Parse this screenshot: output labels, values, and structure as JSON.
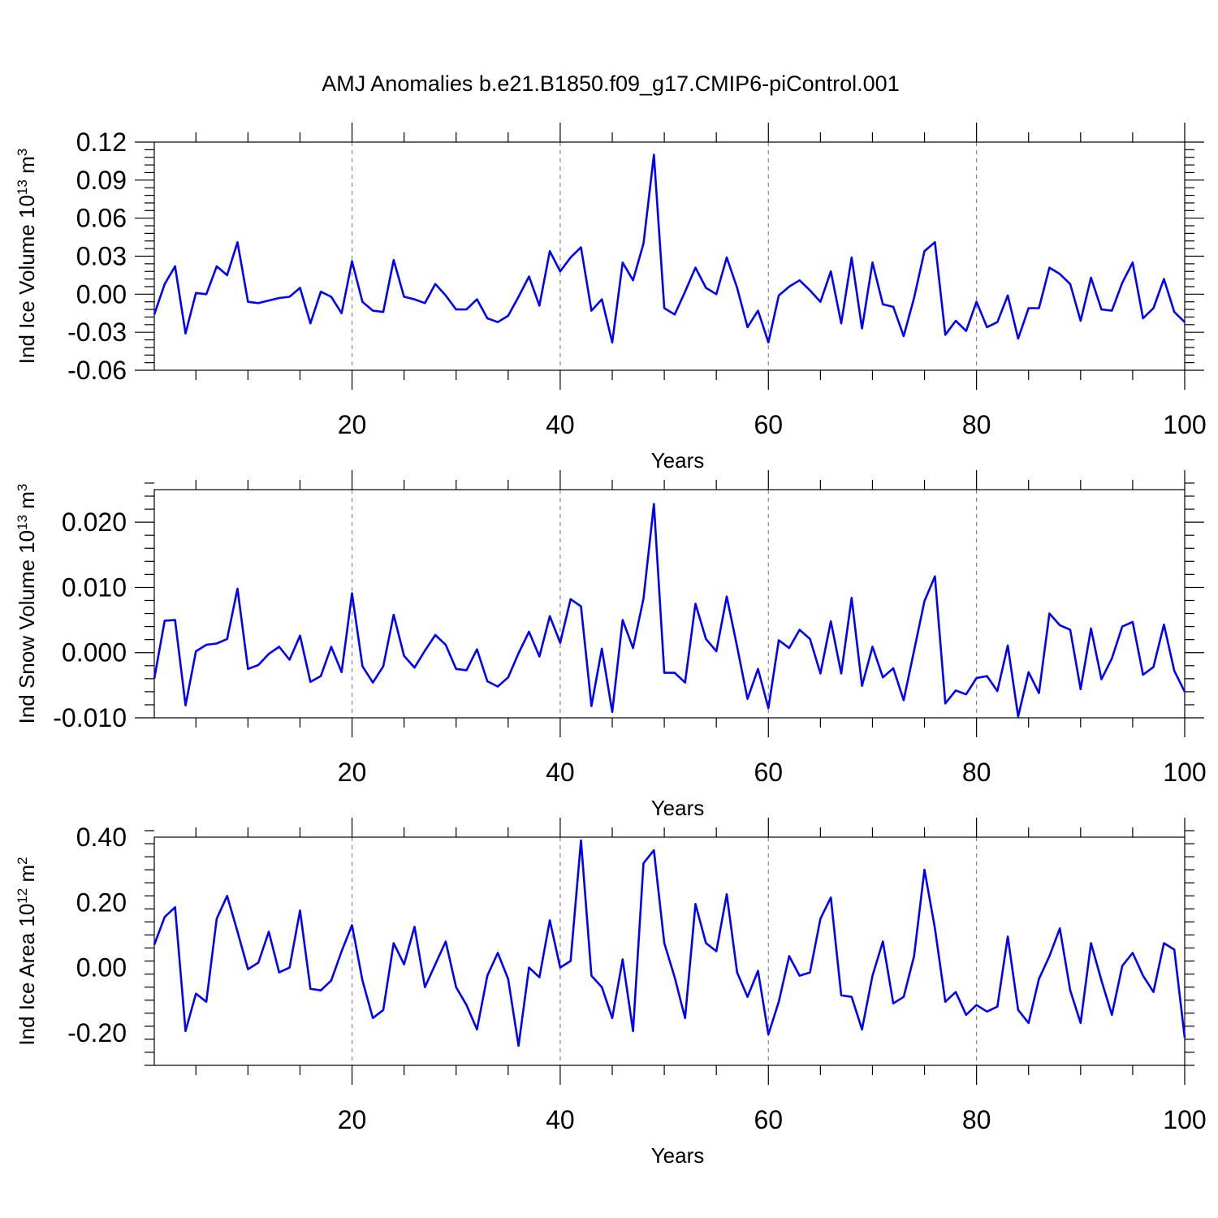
{
  "title": "AMJ Anomalies b.e21.B1850.f09_g17.CMIP6-piControl.001",
  "colors": {
    "series": "#0000ff",
    "axis": "#000000",
    "grid": "#888888"
  },
  "chart_data": [
    {
      "type": "line",
      "ylabel_main": "Ind Ice Volume 10",
      "ylabel_sup": "13",
      "ylabel_unit": " m",
      "ylabel_unit_sup": "3",
      "xlabel": "Years",
      "xlim": [
        1,
        100
      ],
      "ylim": [
        -0.06,
        0.12
      ],
      "xticks": [
        20,
        40,
        60,
        80,
        100
      ],
      "yticks": [
        -0.06,
        -0.03,
        0.0,
        0.03,
        0.06,
        0.09,
        0.12
      ],
      "ytick_labels": [
        "-0.06",
        "-0.03",
        "0.00",
        "0.03",
        "0.06",
        "0.09",
        "0.12"
      ],
      "ytick_decimals": 2,
      "grid_x": true,
      "x": [
        1,
        2,
        3,
        4,
        5,
        6,
        7,
        8,
        9,
        10,
        11,
        12,
        13,
        14,
        15,
        16,
        17,
        18,
        19,
        20,
        21,
        22,
        23,
        24,
        25,
        26,
        27,
        28,
        29,
        30,
        31,
        32,
        33,
        34,
        35,
        36,
        37,
        38,
        39,
        40,
        41,
        42,
        43,
        44,
        45,
        46,
        47,
        48,
        49,
        50,
        51,
        52,
        53,
        54,
        55,
        56,
        57,
        58,
        59,
        60,
        61,
        62,
        63,
        64,
        65,
        66,
        67,
        68,
        69,
        70,
        71,
        72,
        73,
        74,
        75,
        76,
        77,
        78,
        79,
        80,
        81,
        82,
        83,
        84,
        85,
        86,
        87,
        88,
        89,
        90,
        91,
        92,
        93,
        94,
        95,
        96,
        97,
        98,
        99,
        100
      ],
      "series": [
        {
          "values": [
            -0.016,
            0.008,
            0.022,
            -0.031,
            0.001,
            0.0,
            0.022,
            0.015,
            0.041,
            -0.006,
            -0.007,
            -0.005,
            -0.003,
            -0.002,
            0.005,
            -0.023,
            0.002,
            -0.002,
            -0.015,
            0.026,
            -0.006,
            -0.013,
            -0.014,
            0.027,
            -0.002,
            -0.004,
            -0.007,
            0.008,
            -0.001,
            -0.012,
            -0.012,
            -0.004,
            -0.019,
            -0.022,
            -0.017,
            -0.002,
            0.014,
            -0.009,
            0.034,
            0.018,
            0.029,
            0.037,
            -0.013,
            -0.004,
            -0.038,
            0.025,
            0.011,
            0.04,
            0.11,
            -0.011,
            -0.016,
            0.002,
            0.021,
            0.005,
            0.0,
            0.029,
            0.005,
            -0.026,
            -0.013,
            -0.038,
            -0.001,
            0.006,
            0.011,
            0.003,
            -0.006,
            0.018,
            -0.023,
            0.029,
            -0.027,
            0.025,
            -0.008,
            -0.01,
            -0.033,
            -0.003,
            0.034,
            0.041,
            -0.032,
            -0.021,
            -0.029,
            -0.006,
            -0.026,
            -0.022,
            -0.001,
            -0.035,
            -0.011,
            -0.011,
            0.021,
            0.016,
            0.008,
            -0.021,
            0.013,
            -0.012,
            -0.013,
            0.009,
            0.025,
            -0.019,
            -0.011,
            0.012,
            -0.014,
            -0.022
          ]
        }
      ]
    },
    {
      "type": "line",
      "ylabel_main": "Ind Snow Volume 10",
      "ylabel_sup": "13",
      "ylabel_unit": " m",
      "ylabel_unit_sup": "3",
      "xlabel": "Years",
      "xlim": [
        1,
        100
      ],
      "ylim": [
        -0.01,
        0.025
      ],
      "xticks": [
        20,
        40,
        60,
        80,
        100
      ],
      "yticks": [
        -0.01,
        0.0,
        0.01,
        0.02
      ],
      "ytick_labels": [
        "-0.010",
        "0.000",
        "0.010",
        "0.020"
      ],
      "ytick_decimals": 3,
      "grid_x": true,
      "x": [
        1,
        2,
        3,
        4,
        5,
        6,
        7,
        8,
        9,
        10,
        11,
        12,
        13,
        14,
        15,
        16,
        17,
        18,
        19,
        20,
        21,
        22,
        23,
        24,
        25,
        26,
        27,
        28,
        29,
        30,
        31,
        32,
        33,
        34,
        35,
        36,
        37,
        38,
        39,
        40,
        41,
        42,
        43,
        44,
        45,
        46,
        47,
        48,
        49,
        50,
        51,
        52,
        53,
        54,
        55,
        56,
        57,
        58,
        59,
        60,
        61,
        62,
        63,
        64,
        65,
        66,
        67,
        68,
        69,
        70,
        71,
        72,
        73,
        74,
        75,
        76,
        77,
        78,
        79,
        80,
        81,
        82,
        83,
        84,
        85,
        86,
        87,
        88,
        89,
        90,
        91,
        92,
        93,
        94,
        95,
        96,
        97,
        98,
        99,
        100
      ],
      "series": [
        {
          "values": [
            -0.004,
            0.0049,
            0.005,
            -0.0081,
            0.0002,
            0.0012,
            0.0014,
            0.0021,
            0.0098,
            -0.0025,
            -0.0019,
            -0.0002,
            0.0009,
            -0.0011,
            0.0026,
            -0.0045,
            -0.0036,
            0.0009,
            -0.003,
            0.0091,
            -0.0021,
            -0.0046,
            -0.0021,
            0.0058,
            -0.0005,
            -0.0023,
            0.0003,
            0.0027,
            0.0012,
            -0.0025,
            -0.0027,
            0.0005,
            -0.0044,
            -0.0052,
            -0.0038,
            -0.0001,
            0.0032,
            -0.0006,
            0.0056,
            0.0015,
            0.0082,
            0.0071,
            -0.0082,
            0.0006,
            -0.0091,
            0.005,
            0.0007,
            0.0083,
            0.0228,
            -0.0031,
            -0.0031,
            -0.0046,
            0.0075,
            0.0021,
            0.0002,
            0.0086,
            0.0009,
            -0.0071,
            -0.0025,
            -0.0085,
            0.0019,
            0.0007,
            0.0035,
            0.0021,
            -0.0032,
            0.0048,
            -0.0032,
            0.0084,
            -0.0051,
            0.0009,
            -0.0038,
            -0.0024,
            -0.0073,
            0.0003,
            0.0079,
            0.0117,
            -0.0078,
            -0.0058,
            -0.0064,
            -0.0039,
            -0.0036,
            -0.0059,
            0.0011,
            -0.0098,
            -0.003,
            -0.0062,
            0.006,
            0.0042,
            0.0035,
            -0.0056,
            0.0037,
            -0.0041,
            -0.0009,
            0.004,
            0.0047,
            -0.0034,
            -0.0022,
            0.0043,
            -0.0028,
            -0.006
          ]
        }
      ]
    },
    {
      "type": "line",
      "ylabel_main": "Ind Ice Area 10",
      "ylabel_sup": "12",
      "ylabel_unit": " m",
      "ylabel_unit_sup": "2",
      "xlabel": "Years",
      "xlim": [
        1,
        100
      ],
      "ylim": [
        -0.3,
        0.4
      ],
      "xticks": [
        20,
        40,
        60,
        80,
        100
      ],
      "yticks": [
        -0.2,
        0.0,
        0.2,
        0.4
      ],
      "ytick_labels": [
        "-0.20",
        "0.00",
        "0.20",
        "0.40"
      ],
      "ytick_decimals": 2,
      "grid_x": true,
      "x": [
        1,
        2,
        3,
        4,
        5,
        6,
        7,
        8,
        9,
        10,
        11,
        12,
        13,
        14,
        15,
        16,
        17,
        18,
        19,
        20,
        21,
        22,
        23,
        24,
        25,
        26,
        27,
        28,
        29,
        30,
        31,
        32,
        33,
        34,
        35,
        36,
        37,
        38,
        39,
        40,
        41,
        42,
        43,
        44,
        45,
        46,
        47,
        48,
        49,
        50,
        51,
        52,
        53,
        54,
        55,
        56,
        57,
        58,
        59,
        60,
        61,
        62,
        63,
        64,
        65,
        66,
        67,
        68,
        69,
        70,
        71,
        72,
        73,
        74,
        75,
        76,
        77,
        78,
        79,
        80,
        81,
        82,
        83,
        84,
        85,
        86,
        87,
        88,
        89,
        90,
        91,
        92,
        93,
        94,
        95,
        96,
        97,
        98,
        99,
        100
      ],
      "series": [
        {
          "values": [
            0.07,
            0.155,
            0.185,
            -0.195,
            -0.08,
            -0.105,
            0.15,
            0.22,
            0.11,
            -0.005,
            0.015,
            0.11,
            -0.015,
            0.0,
            0.175,
            -0.065,
            -0.07,
            -0.04,
            0.05,
            0.13,
            -0.04,
            -0.155,
            -0.13,
            0.075,
            0.01,
            0.125,
            -0.06,
            0.01,
            0.08,
            -0.06,
            -0.115,
            -0.19,
            -0.025,
            0.045,
            -0.035,
            -0.24,
            0.0,
            -0.03,
            0.145,
            0.0,
            0.02,
            0.39,
            -0.025,
            -0.06,
            -0.155,
            0.025,
            -0.195,
            0.32,
            0.36,
            0.075,
            -0.03,
            -0.155,
            0.195,
            0.075,
            0.05,
            0.225,
            -0.015,
            -0.09,
            -0.01,
            -0.205,
            -0.105,
            0.035,
            -0.025,
            -0.015,
            0.15,
            0.215,
            -0.085,
            -0.09,
            -0.19,
            -0.025,
            0.08,
            -0.11,
            -0.09,
            0.035,
            0.3,
            0.12,
            -0.105,
            -0.075,
            -0.145,
            -0.115,
            -0.135,
            -0.12,
            0.095,
            -0.13,
            -0.17,
            -0.035,
            0.035,
            0.12,
            -0.07,
            -0.17,
            0.075,
            -0.04,
            -0.145,
            0.005,
            0.045,
            -0.025,
            -0.075,
            0.075,
            0.055,
            -0.215
          ]
        }
      ]
    }
  ]
}
